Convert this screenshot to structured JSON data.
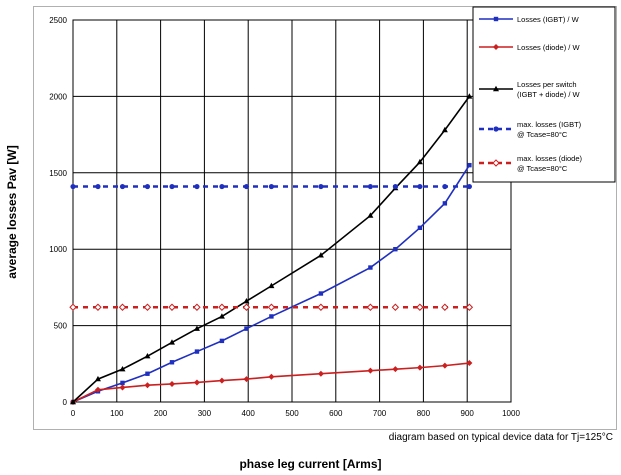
{
  "chart_data": {
    "type": "line",
    "title": "",
    "xlabel": "phase leg current [Arms]",
    "ylabel": "average losses Pav [W]",
    "note": "diagram based on typical device data for Tj=125°C",
    "xlim": [
      0,
      1000
    ],
    "ylim": [
      0,
      2500
    ],
    "xticks": [
      0,
      100,
      200,
      300,
      400,
      500,
      600,
      700,
      800,
      900,
      1000
    ],
    "yticks": [
      0,
      500,
      1000,
      1500,
      2000,
      2500
    ],
    "grid": true,
    "legend_position": "top-right",
    "series": [
      {
        "name": "Losses (IGBT) / W",
        "color": "#1f2fbf",
        "style": "solid",
        "marker": "square",
        "x": [
          0,
          57,
          113,
          170,
          226,
          283,
          340,
          396,
          453,
          566,
          679,
          736,
          792,
          849,
          905
        ],
        "y": [
          0,
          70,
          125,
          185,
          260,
          330,
          400,
          480,
          560,
          710,
          880,
          1000,
          1140,
          1300,
          1550
        ]
      },
      {
        "name": "Losses (diode) / W",
        "color": "#cc1f1f",
        "style": "solid",
        "marker": "diamond",
        "x": [
          0,
          57,
          113,
          170,
          226,
          283,
          340,
          396,
          453,
          566,
          679,
          736,
          792,
          849,
          905
        ],
        "y": [
          0,
          80,
          95,
          110,
          118,
          128,
          140,
          150,
          165,
          185,
          205,
          215,
          225,
          238,
          255
        ]
      },
      {
        "name": "Losses per switch (IGBT + diode) / W",
        "color": "#000000",
        "style": "solid",
        "marker": "triangle",
        "x": [
          0,
          57,
          113,
          170,
          226,
          283,
          340,
          396,
          453,
          566,
          679,
          736,
          792,
          849,
          905
        ],
        "y": [
          0,
          150,
          215,
          300,
          390,
          480,
          560,
          660,
          760,
          960,
          1220,
          1400,
          1570,
          1780,
          2000
        ]
      },
      {
        "name": "max. losses (IGBT) @ Tcase=80°C",
        "color": "#1f2fbf",
        "style": "dashed",
        "marker": "circle",
        "x": [
          0,
          57,
          113,
          170,
          226,
          283,
          340,
          396,
          453,
          566,
          679,
          736,
          792,
          849,
          905
        ],
        "y": [
          1410,
          1410,
          1410,
          1410,
          1410,
          1410,
          1410,
          1410,
          1410,
          1410,
          1410,
          1410,
          1410,
          1410,
          1410
        ]
      },
      {
        "name": "max. losses (diode) @ Tcase=80°C",
        "color": "#cc1f1f",
        "style": "dashed",
        "marker": "open-diamond",
        "x": [
          0,
          57,
          113,
          170,
          226,
          283,
          340,
          396,
          453,
          566,
          679,
          736,
          792,
          849,
          905
        ],
        "y": [
          620,
          620,
          620,
          620,
          620,
          620,
          620,
          620,
          620,
          620,
          620,
          620,
          620,
          620,
          620
        ]
      }
    ],
    "legend_labels": [
      [
        "Losses (IGBT) / W"
      ],
      [
        "Losses (diode) / W"
      ],
      [
        "Losses per switch",
        "(IGBT + diode) / W"
      ],
      [
        "max. losses (IGBT)",
        "@ Tcase=80°C"
      ],
      [
        "max. losses (diode)",
        "@ Tcase=80°C"
      ]
    ]
  }
}
